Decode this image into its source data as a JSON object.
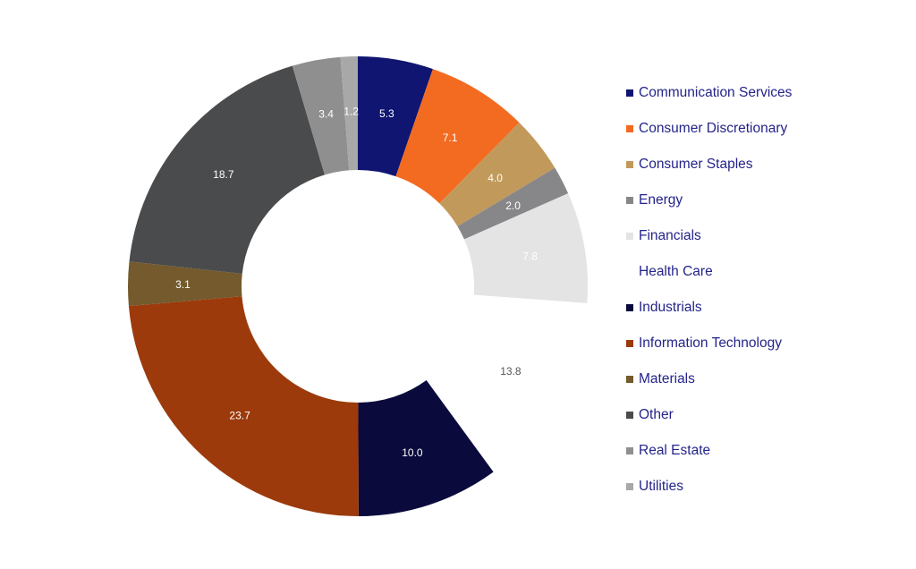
{
  "chart_data": {
    "type": "pie",
    "donut": true,
    "title": "",
    "categories": [
      "Communication Services",
      "Consumer Discretionary",
      "Consumer Staples",
      "Energy",
      "Financials",
      "Health Care",
      "Industrials",
      "Information Technology",
      "Materials",
      "Other",
      "Real Estate",
      "Utilities"
    ],
    "values": [
      5.3,
      7.1,
      4.0,
      2.0,
      7.8,
      13.8,
      10.0,
      23.7,
      3.1,
      18.7,
      3.4,
      1.2
    ],
    "labels": [
      "5.3",
      "7.1",
      "4.0",
      "2.0",
      "7.8",
      "13.8",
      "10.0",
      "23.7",
      "3.1",
      "18.7",
      "3.4",
      "1.2"
    ],
    "colors": [
      "#0f1570",
      "#f26b21",
      "#c19a5b",
      "#87878a",
      "#e4e4e4",
      "#ffffff",
      "#0a0a3c",
      "#9c3a0c",
      "#745a2c",
      "#4a4b4d",
      "#8f8f8f",
      "#a8a8a8"
    ],
    "label_colors": [
      "#ffffff",
      "#ffffff",
      "#ffffff",
      "#ffffff",
      "#ffffff",
      "#555555",
      "#ffffff",
      "#ffffff",
      "#ffffff",
      "#ffffff",
      "#ffffff",
      "#ffffff"
    ],
    "start": "12 o'clock",
    "direction": "clockwise",
    "legend_placement": "right"
  }
}
